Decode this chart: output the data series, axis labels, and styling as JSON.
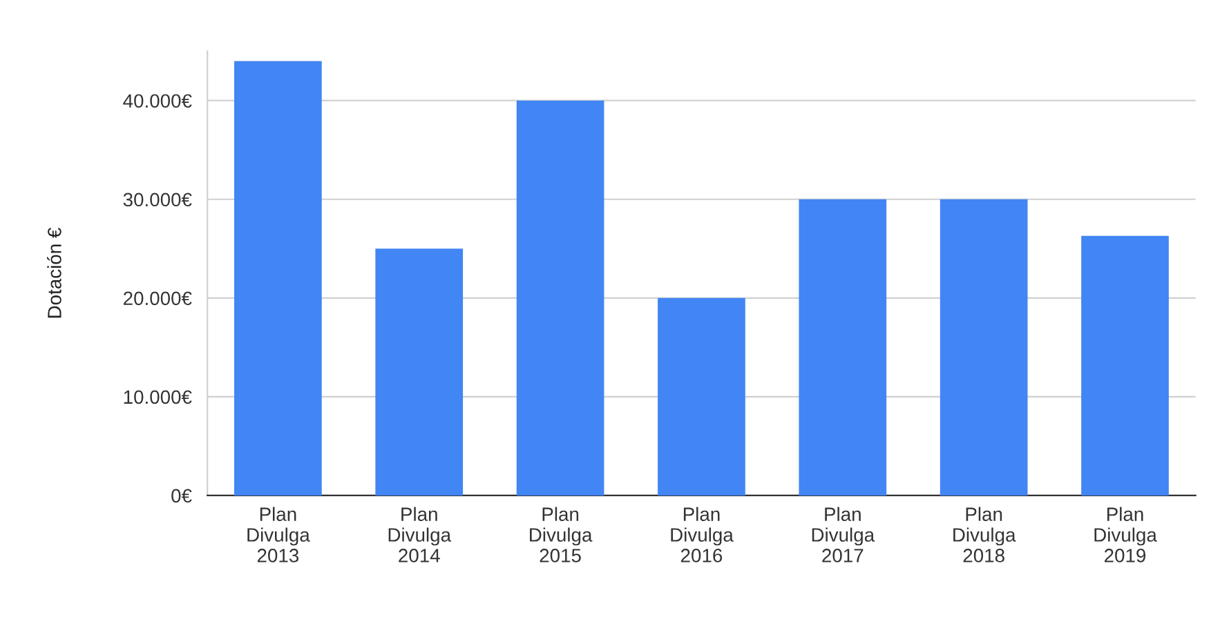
{
  "chart_data": {
    "type": "bar",
    "ylabel": "Dotación €",
    "categories": [
      "Plan\nDivulga\n2013",
      "Plan\nDivulga\n2014",
      "Plan\nDivulga\n2015",
      "Plan\nDivulga\n2016",
      "Plan\nDivulga\n2017",
      "Plan\nDivulga\n2018",
      "Plan\nDivulga\n2019"
    ],
    "values": [
      44000,
      25000,
      40000,
      20000,
      30000,
      30000,
      26300
    ],
    "color": "#4285f4",
    "ylim": [
      0,
      45000
    ],
    "yticks": [
      {
        "value": 0,
        "label": "0€"
      },
      {
        "value": 10000,
        "label": "10.000€"
      },
      {
        "value": 20000,
        "label": "20.000€"
      },
      {
        "value": 30000,
        "label": "30.000€"
      },
      {
        "value": 40000,
        "label": "40.000€"
      }
    ],
    "grid": "y",
    "legend": false
  }
}
